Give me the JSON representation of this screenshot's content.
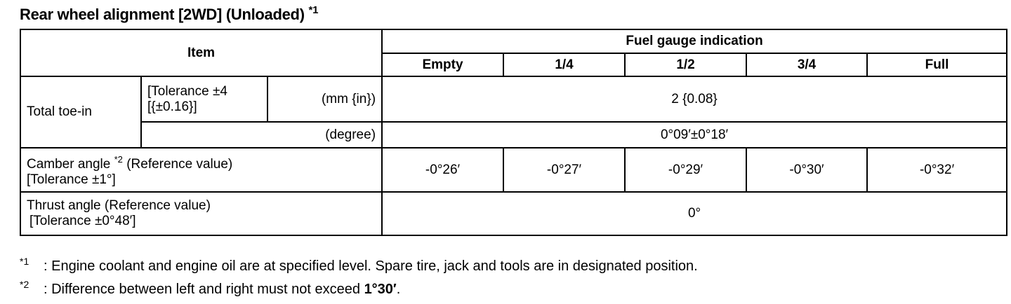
{
  "title": "Rear wheel alignment [2WD] (Unloaded)",
  "title_note_mark": "*1",
  "table": {
    "item_header": "Item",
    "fuel_header": "Fuel gauge indication",
    "fuel_levels": [
      "Empty",
      "1/4",
      "1/2",
      "3/4",
      "Full"
    ],
    "toe_in": {
      "label": "Total toe-in",
      "tolerance_line1": "[Tolerance ±4",
      "tolerance_line2": "[{±0.16}]",
      "unit_mm": "(mm {in})",
      "value_mm": "2 {0.08}",
      "unit_degree": "(degree)",
      "value_degree": "0°09′±0°18′"
    },
    "camber": {
      "label": "Camber angle",
      "note_mark": "*2",
      "label_suffix": "(Reference value)",
      "tolerance": "[Tolerance ±1°]",
      "values": [
        "-0°26′",
        "-0°27′",
        "-0°29′",
        "-0°30′",
        "-0°32′"
      ]
    },
    "thrust": {
      "label": "Thrust angle (Reference value)",
      "tolerance": "[Tolerance ±0°48′]",
      "value": "0°"
    }
  },
  "notes": [
    {
      "mark": "*1",
      "text": ": Engine coolant and engine oil are at specified level. Spare tire, jack and tools are in designated position."
    },
    {
      "mark": "*2",
      "text": ": Difference between left and right must not exceed ",
      "bold": "1°30′",
      "end": "."
    }
  ]
}
